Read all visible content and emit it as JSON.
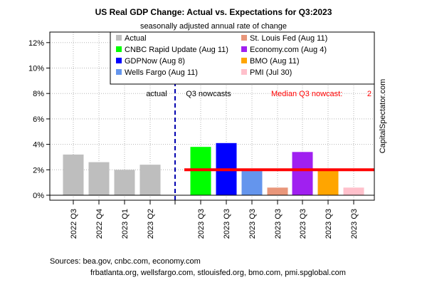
{
  "chart_data": {
    "type": "bar",
    "title": "US Real GDP Change: Actual vs. Expectations for Q3:2023",
    "subtitle": "seasonally adjusted annual rate of change",
    "ylim": [
      0,
      12.5
    ],
    "yticks": [
      0,
      2,
      4,
      6,
      8,
      10,
      12
    ],
    "ytick_labels": [
      "0%",
      "2%",
      "4%",
      "6%",
      "8%",
      "10%",
      "12%"
    ],
    "grid": true,
    "legend_position": "top-right",
    "categories": [
      "2022 Q3",
      "2022 Q4",
      "2023 Q1",
      "2023 Q2",
      "2023 Q3",
      "2023 Q3",
      "2023 Q3",
      "2023 Q3",
      "2023 Q3",
      "2023 Q3",
      "2023 Q3"
    ],
    "values": [
      3.2,
      2.6,
      2.0,
      2.4,
      3.8,
      4.1,
      1.9,
      0.6,
      3.4,
      2.0,
      0.6
    ],
    "bar_series_index": [
      0,
      0,
      0,
      0,
      1,
      2,
      3,
      4,
      5,
      6,
      7
    ],
    "series": [
      {
        "name": "Actual",
        "color": "#bebebe"
      },
      {
        "name": "CNBC Rapid Update (Aug 11)",
        "color": "#00ff00"
      },
      {
        "name": "GDPNow (Aug 8)",
        "color": "#0000ff"
      },
      {
        "name": "Wells Fargo (Aug 11)",
        "color": "#6495ed"
      },
      {
        "name": "St. Louis Fed (Aug 11)",
        "color": "#e9967a"
      },
      {
        "name": "Economy.com (Aug 4)",
        "color": "#a020f0"
      },
      {
        "name": "BMO (Aug 11)",
        "color": "#ffa500"
      },
      {
        "name": "PMI (Jul 30)",
        "color": "#ffc0cb"
      }
    ],
    "median_nowcast": {
      "value": 2.0,
      "label": "Median Q3 nowcast:",
      "value_label": "2",
      "color": "#ff0000"
    },
    "divider_after_index": 3,
    "annotations": {
      "left": "actual",
      "right": "Q3 nowcasts"
    },
    "side_label": "CapitalSpectator.com",
    "sources": [
      "Sources: bea.gov, cnbc.com, economy.com",
      "frbatlanta.org, wellsfargo.com, stlouisfed.org, bmo.com, pmi.spglobal.com"
    ]
  }
}
